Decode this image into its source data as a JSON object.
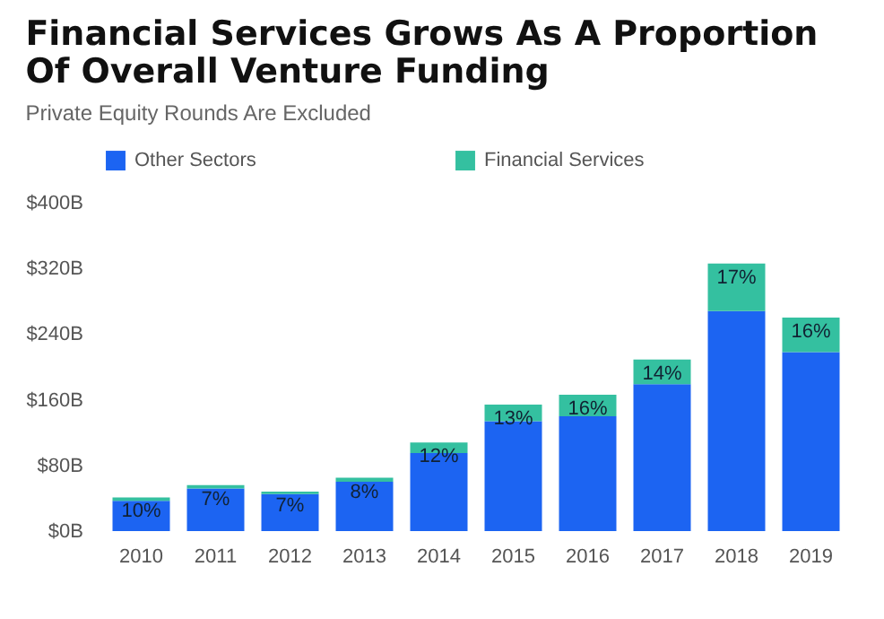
{
  "chart_data": {
    "type": "bar",
    "stacked": true,
    "title": [
      "Financial Services Grows As A Proportion",
      "Of Overall Venture Funding"
    ],
    "subtitle": "Private Equity Rounds Are Excluded",
    "categories": [
      "2010",
      "2011",
      "2012",
      "2013",
      "2014",
      "2015",
      "2016",
      "2017",
      "2018",
      "2019"
    ],
    "series": [
      {
        "name": "Other Sectors",
        "color": "#1c64f2",
        "values": [
          37,
          52,
          45,
          60,
          95,
          134,
          140,
          179,
          268,
          218
        ]
      },
      {
        "name": "Financial Services",
        "color": "#34c0a0",
        "values": [
          4,
          4,
          3,
          5,
          13,
          20,
          26,
          30,
          58,
          42
        ]
      }
    ],
    "annotations": [
      {
        "text": "10%",
        "x": "2010",
        "y": 41
      },
      {
        "text": "7%",
        "x": "2011",
        "y": 56
      },
      {
        "text": "7%",
        "x": "2012",
        "y": 48
      },
      {
        "text": "8%",
        "x": "2013",
        "y": 65
      },
      {
        "text": "12%",
        "x": "2014",
        "y": 108
      },
      {
        "text": "13%",
        "x": "2015",
        "y": 154
      },
      {
        "text": "16%",
        "x": "2016",
        "y": 166
      },
      {
        "text": "14%",
        "x": "2017",
        "y": 209
      },
      {
        "text": "17%",
        "x": "2018",
        "y": 326
      },
      {
        "text": "16%",
        "x": "2019",
        "y": 260
      }
    ],
    "ylim": [
      0,
      400
    ],
    "yticks": [
      {
        "value": 0,
        "label": "$0B"
      },
      {
        "value": 80,
        "label": "$80B"
      },
      {
        "value": 160,
        "label": "$160B"
      },
      {
        "value": 240,
        "label": "$240B"
      },
      {
        "value": 320,
        "label": "$320B"
      },
      {
        "value": 400,
        "label": "$400B"
      }
    ],
    "grid": false,
    "legend": "top"
  }
}
